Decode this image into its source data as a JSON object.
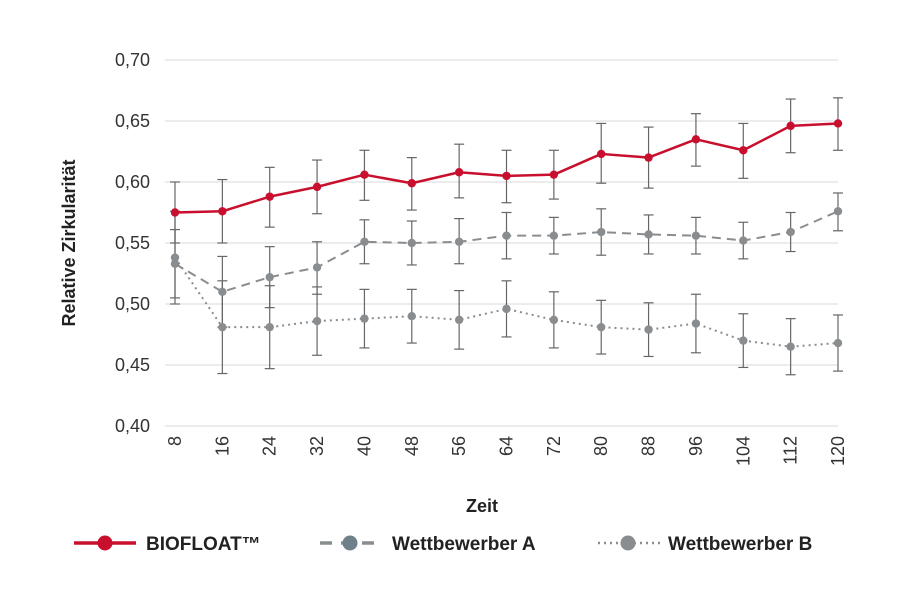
{
  "chart_data": {
    "type": "line",
    "title": "",
    "xlabel": "Zeit",
    "ylabel": "Relative Zirkularität",
    "ylim": [
      0.4,
      0.7
    ],
    "yticks": [
      0.4,
      0.45,
      0.5,
      0.55,
      0.6,
      0.65,
      0.7
    ],
    "ytick_labels": [
      "0,40",
      "0,45",
      "0,50",
      "0,55",
      "0,60",
      "0,65",
      "0,70"
    ],
    "x": [
      8,
      16,
      24,
      32,
      40,
      48,
      56,
      64,
      72,
      80,
      88,
      96,
      104,
      112,
      120
    ],
    "x_labels": [
      "8",
      "16",
      "24",
      "32",
      "40",
      "48",
      "56",
      "64",
      "72",
      "80",
      "88",
      "96",
      "104",
      "112",
      "120"
    ],
    "grid": "horizontal",
    "legend_position": "bottom",
    "series": [
      {
        "name": "BIOFLOAT™",
        "style": "solid",
        "color": "#c8102e",
        "values": [
          0.575,
          0.576,
          0.588,
          0.596,
          0.606,
          0.599,
          0.608,
          0.605,
          0.606,
          0.623,
          0.62,
          0.635,
          0.626,
          0.646,
          0.648
        ],
        "err_low": [
          0.55,
          0.55,
          0.563,
          0.574,
          0.585,
          0.577,
          0.587,
          0.583,
          0.586,
          0.599,
          0.595,
          0.613,
          0.603,
          0.624,
          0.626
        ],
        "err_high": [
          0.6,
          0.602,
          0.612,
          0.618,
          0.626,
          0.62,
          0.631,
          0.626,
          0.626,
          0.648,
          0.645,
          0.656,
          0.648,
          0.668,
          0.669
        ]
      },
      {
        "name": "Wettbewerber A",
        "style": "dashed",
        "color": "#8a8d8f",
        "values": [
          0.533,
          0.51,
          0.522,
          0.53,
          0.551,
          0.55,
          0.551,
          0.556,
          0.556,
          0.559,
          0.557,
          0.556,
          0.552,
          0.559,
          0.576
        ],
        "err_low": [
          0.505,
          0.481,
          0.497,
          0.508,
          0.533,
          0.532,
          0.533,
          0.537,
          0.541,
          0.54,
          0.541,
          0.541,
          0.537,
          0.543,
          0.56
        ],
        "err_high": [
          0.561,
          0.539,
          0.547,
          0.551,
          0.569,
          0.568,
          0.57,
          0.575,
          0.571,
          0.578,
          0.573,
          0.571,
          0.567,
          0.575,
          0.591
        ]
      },
      {
        "name": "Wettbewerber B",
        "style": "dotted",
        "color": "#8a8d8f",
        "values": [
          0.538,
          0.481,
          0.481,
          0.486,
          0.488,
          0.49,
          0.487,
          0.496,
          0.487,
          0.481,
          0.479,
          0.484,
          0.47,
          0.465,
          0.468
        ],
        "err_low": [
          0.5,
          0.443,
          0.447,
          0.458,
          0.464,
          0.468,
          0.463,
          0.473,
          0.464,
          0.459,
          0.457,
          0.46,
          0.448,
          0.442,
          0.445
        ],
        "err_high": [
          0.576,
          0.519,
          0.515,
          0.514,
          0.512,
          0.512,
          0.511,
          0.519,
          0.51,
          0.503,
          0.501,
          0.508,
          0.492,
          0.488,
          0.491
        ]
      }
    ]
  },
  "colors": {
    "grid": "#d9d9d9",
    "errorbar": "#666666"
  }
}
